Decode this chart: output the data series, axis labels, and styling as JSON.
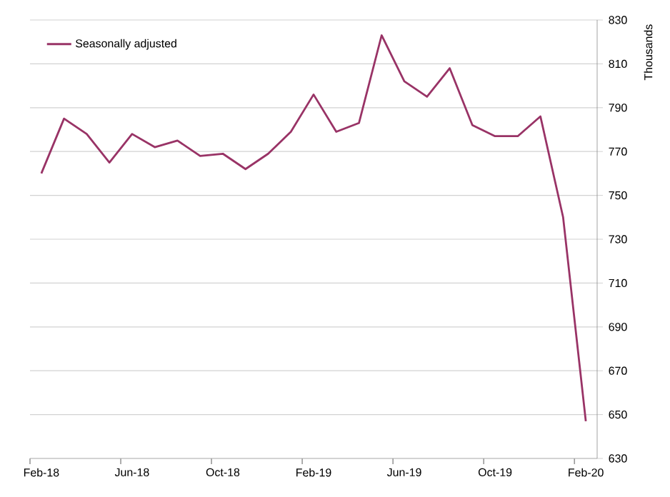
{
  "chart_data": {
    "type": "line",
    "ylabel": "Thousands",
    "categories": [
      "Feb-18",
      null,
      null,
      null,
      "Jun-18",
      null,
      null,
      null,
      "Oct-18",
      null,
      null,
      null,
      "Feb-19",
      null,
      null,
      null,
      "Jun-19",
      null,
      null,
      null,
      "Oct-19",
      null,
      null,
      null,
      "Feb-20"
    ],
    "series": [
      {
        "name": "Seasonally adjusted",
        "color": "#993366",
        "values": [
          760,
          785,
          778,
          765,
          778,
          772,
          775,
          768,
          769,
          762,
          769,
          779,
          796,
          779,
          783,
          823,
          802,
          795,
          808,
          782,
          777,
          777,
          786,
          740,
          647
        ]
      }
    ],
    "ylim": [
      630,
      830
    ],
    "yticks": [
      630,
      650,
      670,
      690,
      710,
      730,
      750,
      770,
      790,
      810,
      830
    ],
    "grid": "y",
    "legend": "top left",
    "marker": "none",
    "line_style": "solid"
  }
}
